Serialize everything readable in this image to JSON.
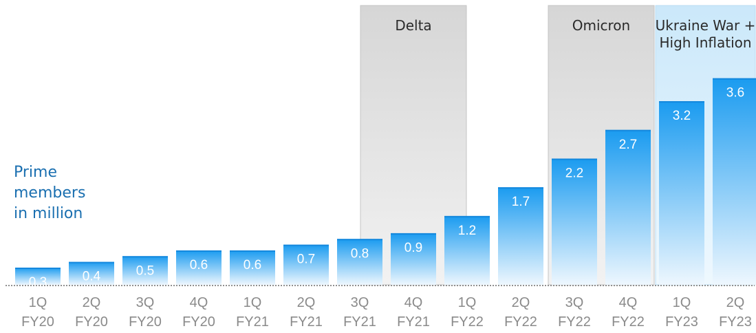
{
  "chart_data": {
    "type": "bar",
    "title": "",
    "xlabel": "",
    "ylabel_lines": [
      "Prime",
      "members",
      "in million"
    ],
    "categories": [
      [
        "1Q",
        "FY20"
      ],
      [
        "2Q",
        "FY20"
      ],
      [
        "3Q",
        "FY20"
      ],
      [
        "4Q",
        "FY20"
      ],
      [
        "1Q",
        "FY21"
      ],
      [
        "2Q",
        "FY21"
      ],
      [
        "3Q",
        "FY21"
      ],
      [
        "4Q",
        "FY21"
      ],
      [
        "1Q",
        "FY22"
      ],
      [
        "2Q",
        "FY22"
      ],
      [
        "3Q",
        "FY22"
      ],
      [
        "4Q",
        "FY22"
      ],
      [
        "1Q",
        "FY23"
      ],
      [
        "2Q",
        "FY23"
      ]
    ],
    "values": [
      0.3,
      0.4,
      0.5,
      0.6,
      0.6,
      0.7,
      0.8,
      0.9,
      1.2,
      1.7,
      2.2,
      2.7,
      3.2,
      3.6
    ],
    "value_labels": [
      "0.3",
      "0.4",
      "0.5",
      "0.6",
      "0.6",
      "0.7",
      "0.8",
      "0.9",
      "1.2",
      "1.7",
      "2.2",
      "2.7",
      "3.2",
      "3.6"
    ],
    "ylim": [
      0,
      4.1
    ],
    "grid": false,
    "legend": "none",
    "annotations": [
      {
        "lines": [
          "Delta"
        ],
        "from_index": 6.5,
        "to_index": 8.5,
        "style": "gray"
      },
      {
        "lines": [
          "Omicron"
        ],
        "from_index": 10,
        "to_index": 12,
        "style": "gray"
      },
      {
        "lines": [
          "Ukraine War +",
          "High Inflation"
        ],
        "from_index": 12,
        "to_index": 14,
        "style": "blue"
      }
    ],
    "colors": {
      "bar_top": "#1a9bf0",
      "bar_bottom": "#eef7fe",
      "axis_label": "#8a8a8a",
      "value_label": "#ffffff",
      "ylabel": "#1a6fb0",
      "annotation_gray": "#dcdcdc",
      "annotation_blue": "#d2ecfb"
    }
  }
}
